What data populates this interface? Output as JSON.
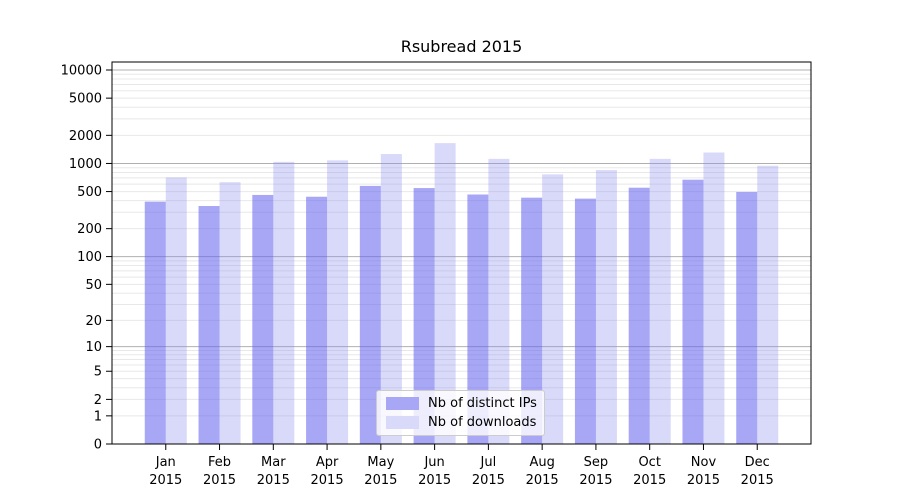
{
  "chart_data": {
    "type": "bar",
    "title": "Rsubread 2015",
    "year": "2015",
    "categories": [
      "Jan",
      "Feb",
      "Mar",
      "Apr",
      "May",
      "Jun",
      "Jul",
      "Aug",
      "Sep",
      "Oct",
      "Nov",
      "Dec"
    ],
    "series": [
      {
        "name": "Nb of distinct IPs",
        "fill": "rgba(100,100,238,0.57)",
        "legend_color": "#a7a7f5",
        "values": [
          390,
          350,
          460,
          440,
          575,
          545,
          465,
          430,
          420,
          550,
          670,
          495
        ]
      },
      {
        "name": "Nb of downloads",
        "fill": "rgba(140,140,240,0.33)",
        "legend_color": "#d9d9fa",
        "values": [
          710,
          630,
          1040,
          1080,
          1260,
          1650,
          1120,
          765,
          850,
          1120,
          1310,
          945
        ]
      }
    ],
    "y_axis": {
      "scale": "log1p",
      "ticks": [
        0,
        1,
        2,
        5,
        10,
        20,
        50,
        100,
        200,
        500,
        1000,
        2000,
        5000,
        10000
      ],
      "major_gridlines": [
        10,
        100,
        1000,
        10000
      ],
      "ylim": [
        0,
        12000
      ]
    },
    "x_axis": {
      "tick_label_line2": "2015"
    },
    "legend": {
      "position": "lower-center"
    },
    "colors": {
      "grid_major": "#b0b0b0",
      "grid_minor": "#e8e8e8",
      "frame": "#000000"
    },
    "grid": "on"
  }
}
